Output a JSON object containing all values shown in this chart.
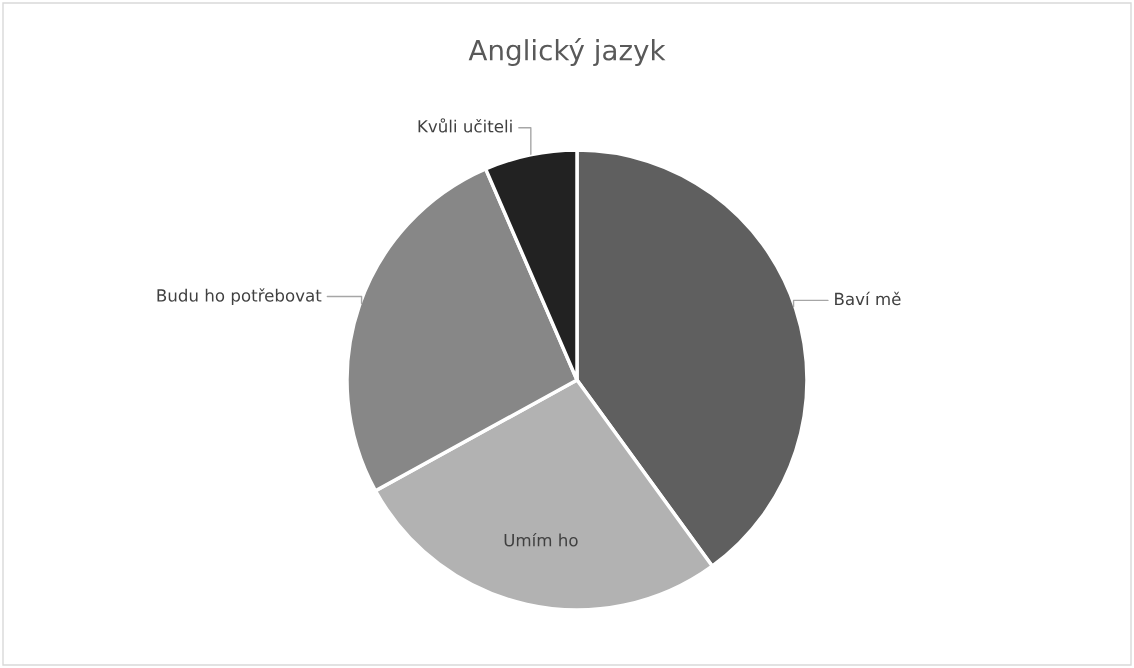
{
  "chart_data": {
    "type": "pie",
    "title": "Anglický jazyk",
    "categories": [
      "Baví mě",
      "Umím ho",
      "Budu ho potřebovat",
      "Kvůli učiteli"
    ],
    "values": [
      40,
      27,
      26.5,
      6.5
    ],
    "colors": [
      "#5f5f5f",
      "#b2b2b2",
      "#878787",
      "#222222"
    ]
  }
}
